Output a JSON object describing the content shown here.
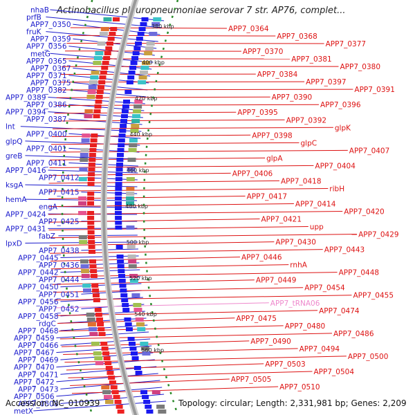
{
  "title": "Actinobacillus pleuropneumoniae serovar 7 str. AP76, complet...",
  "footer": {
    "accession": "Accession: NC_010939",
    "summary": "Topology: circular; Length: 2,331,981 bp; Genes: 2,209"
  },
  "colors": {
    "left_label": "#1a1acc",
    "right_label": "#dd1111",
    "rna_label": "#ee88cc",
    "backbone": "#999999",
    "tick_dash": "#2a8a2a"
  },
  "scale": [
    {
      "label": "380 kbp"
    },
    {
      "label": "400 kbp"
    },
    {
      "label": "420 kbp"
    },
    {
      "label": "440 kbp"
    },
    {
      "label": "460 kbp"
    },
    {
      "label": "480 kbp"
    },
    {
      "label": "500 kbp"
    },
    {
      "label": "520 kbp"
    },
    {
      "label": "540 kbp"
    },
    {
      "label": "560 kbp"
    }
  ],
  "left_labels": [
    "nhaB",
    "prfB",
    "APP7_0350",
    "fruK",
    "APP7_0359",
    "APP7_0356",
    "metG",
    "APP7_0365",
    "APP7_0367",
    "APP7_0371",
    "APP7_0375",
    "APP7_0382",
    "APP7_0389",
    "APP7_0386",
    "APP7_0394",
    "APP7_0387",
    "lnt",
    "APP7_0400",
    "glpQ",
    "APP7_0401",
    "greB",
    "APP7_0411",
    "APP7_0416",
    "APP7_0412",
    "ksgA",
    "APP7_0415",
    "hemA",
    "engA",
    "APP7_0424",
    "APP7_0425",
    "APP7_0431",
    "fabZ",
    "lpxD",
    "APP7_0438",
    "APP7_0445",
    "APP7_0436",
    "APP7_0442",
    "APP7_0444",
    "APP7_0450",
    "APP7_0451",
    "APP7_0456",
    "APP7_0452",
    "APP7_0458",
    "rdgC",
    "APP7_0468",
    "APP7_0459",
    "APP7_0466",
    "APP7_0467",
    "APP7_0469",
    "APP7_0470",
    "APP7_0471",
    "APP7_0472",
    "APP7_0473",
    "APP7_0506",
    "APP7_0508",
    "metX"
  ],
  "right_labels": [
    "APP7_0364",
    "APP7_0368",
    "APP7_0377",
    "APP7_0370",
    "APP7_0381",
    "APP7_0380",
    "APP7_0384",
    "APP7_0397",
    "APP7_0391",
    "APP7_0390",
    "APP7_0396",
    "APP7_0395",
    "APP7_0392",
    "glpK",
    "APP7_0398",
    "glpC",
    "APP7_0407",
    "glpA",
    "APP7_0404",
    "APP7_0406",
    "APP7_0418",
    "ribH",
    "APP7_0417",
    "APP7_0414",
    "APP7_0420",
    "APP7_0421",
    "upp",
    "APP7_0429",
    "APP7_0430",
    "APP7_0443",
    "APP7_0446",
    "rnhA",
    "APP7_0448",
    "APP7_0449",
    "APP7_0454",
    "APP7_0455",
    "APP7_tRNA06",
    "APP7_0474",
    "APP7_0475",
    "APP7_0480",
    "APP7_0486",
    "APP7_0490",
    "APP7_0494",
    "APP7_0500",
    "APP7_0503",
    "APP7_0504",
    "APP7_0505",
    "APP7_0510"
  ],
  "rna_features": [
    "APP7_tRNA06"
  ]
}
